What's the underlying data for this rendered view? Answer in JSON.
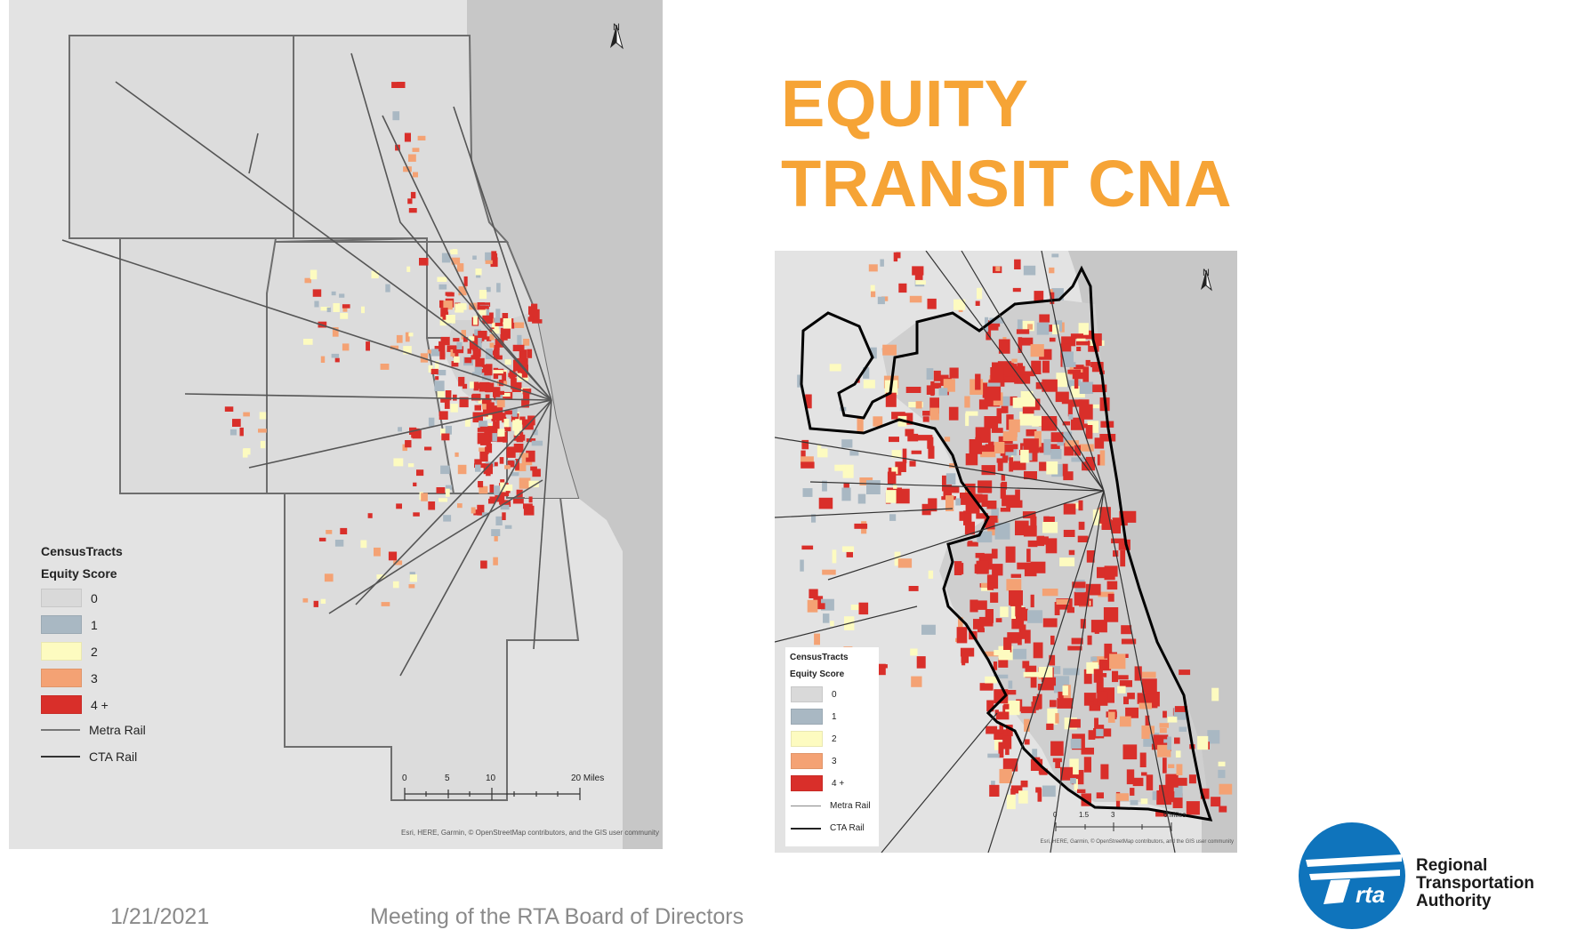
{
  "slide": {
    "title_lines": [
      "EQUITY",
      "TRANSIT CNA"
    ],
    "footer_date": "1/21/2021",
    "footer_meeting": "Meeting of the RTA Board of Directors"
  },
  "logo": {
    "mark_text": "rta",
    "name_lines": [
      "Regional",
      "Transportation",
      "Authority"
    ]
  },
  "colors": {
    "title": "#f6a436",
    "score_0": "#d9d9d9",
    "score_1": "#a9b8c3",
    "score_2": "#fdfbc0",
    "score_3": "#f4a274",
    "score_4": "#d92f2a",
    "water": "#c7c7c7",
    "logo_blue": "#0f74bc"
  },
  "legend": {
    "group": "CensusTracts",
    "field": "Equity Score",
    "items": [
      {
        "label": "0",
        "color": "#d9d9d9"
      },
      {
        "label": "1",
        "color": "#a9b8c3"
      },
      {
        "label": "2",
        "color": "#fdfbc0"
      },
      {
        "label": "3",
        "color": "#f4a274"
      },
      {
        "label": "4 +",
        "color": "#d92f2a"
      }
    ],
    "lines": [
      {
        "label": "Metra Rail"
      },
      {
        "label": "CTA Rail"
      }
    ]
  },
  "map_left": {
    "north_label": "N",
    "scale_labels": [
      "0",
      "5",
      "10",
      "20 Miles"
    ],
    "attribution": "Esri, HERE, Garmin, © OpenStreetMap contributors, and the GIS user community"
  },
  "map_right": {
    "north_label": "N",
    "scale_labels": [
      "0",
      "1.5",
      "3",
      "6 Miles"
    ],
    "attribution": "Esri, HERE, Garmin, © OpenStreetMap contributors, and the GIS user community"
  }
}
